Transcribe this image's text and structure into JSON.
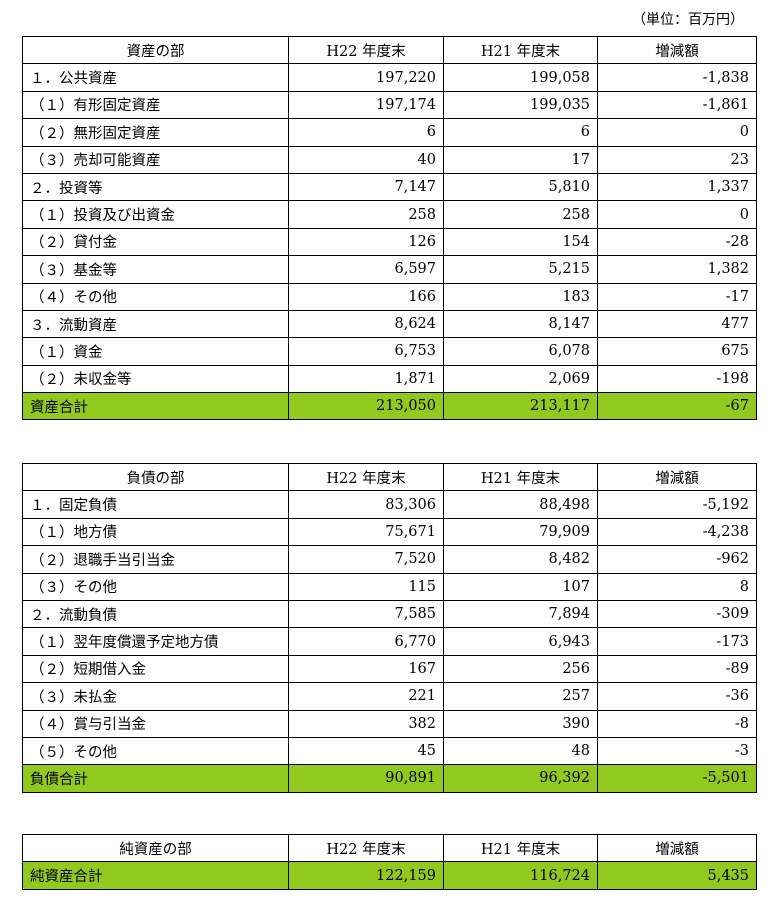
{
  "unit_note": "（単位：百万円）",
  "assets": {
    "headers": [
      "資産の部",
      "H22 年度末",
      "H21 年度末",
      "増減額"
    ],
    "rows": [
      {
        "label": "１．公共資産",
        "level": 1,
        "h22": "197,220",
        "h21": "199,058",
        "diff": "-1,838"
      },
      {
        "label": "（１）有形固定資産",
        "level": 2,
        "h22": "197,174",
        "h21": "199,035",
        "diff": "-1,861"
      },
      {
        "label": "（２）無形固定資産",
        "level": 2,
        "h22": "6",
        "h21": "6",
        "diff": "0"
      },
      {
        "label": "（３）売却可能資産",
        "level": 2,
        "h22": "40",
        "h21": "17",
        "diff": "23"
      },
      {
        "label": "２．投資等",
        "level": 1,
        "h22": "7,147",
        "h21": "5,810",
        "diff": "1,337"
      },
      {
        "label": "（１）投資及び出資金",
        "level": 2,
        "h22": "258",
        "h21": "258",
        "diff": "0"
      },
      {
        "label": "（２）貸付金",
        "level": 2,
        "h22": "126",
        "h21": "154",
        "diff": "-28"
      },
      {
        "label": "（３）基金等",
        "level": 2,
        "h22": "6,597",
        "h21": "5,215",
        "diff": "1,382"
      },
      {
        "label": "（４）その他",
        "level": 2,
        "h22": "166",
        "h21": "183",
        "diff": "-17"
      },
      {
        "label": "３．流動資産",
        "level": 1,
        "h22": "8,624",
        "h21": "8,147",
        "diff": "477"
      },
      {
        "label": "（１）資金",
        "level": 2,
        "h22": "6,753",
        "h21": "6,078",
        "diff": "675"
      },
      {
        "label": "（２）未収金等",
        "level": 2,
        "h22": "1,871",
        "h21": "2,069",
        "diff": "-198"
      }
    ],
    "total": {
      "label": "資産合計",
      "h22": "213,050",
      "h21": "213,117",
      "diff": "-67"
    }
  },
  "liabilities": {
    "headers": [
      "負債の部",
      "H22 年度末",
      "H21 年度末",
      "増減額"
    ],
    "rows": [
      {
        "label": "１．固定負債",
        "level": 1,
        "h22": "83,306",
        "h21": "88,498",
        "diff": "-5,192"
      },
      {
        "label": "（１）地方債",
        "level": 2,
        "h22": "75,671",
        "h21": "79,909",
        "diff": "-4,238"
      },
      {
        "label": "（２）退職手当引当金",
        "level": 2,
        "h22": "7,520",
        "h21": "8,482",
        "diff": "-962"
      },
      {
        "label": "（３）その他",
        "level": 2,
        "h22": "115",
        "h21": "107",
        "diff": "8"
      },
      {
        "label": "２．流動負債",
        "level": 1,
        "h22": "7,585",
        "h21": "7,894",
        "diff": "-309"
      },
      {
        "label": "（１）翌年度償還予定地方債",
        "level": 2,
        "h22": "6,770",
        "h21": "6,943",
        "diff": "-173"
      },
      {
        "label": "（２）短期借入金",
        "level": 2,
        "h22": "167",
        "h21": "256",
        "diff": "-89"
      },
      {
        "label": "（３）未払金",
        "level": 2,
        "h22": "221",
        "h21": "257",
        "diff": "-36"
      },
      {
        "label": "（４）賞与引当金",
        "level": 2,
        "h22": "382",
        "h21": "390",
        "diff": "-8"
      },
      {
        "label": "（５）その他",
        "level": 2,
        "h22": "45",
        "h21": "48",
        "diff": "-3"
      }
    ],
    "total": {
      "label": "負債合計",
      "h22": "90,891",
      "h21": "96,392",
      "diff": "-5,501"
    }
  },
  "net_assets": {
    "headers": [
      "純資産の部",
      "H22 年度末",
      "H21 年度末",
      "増減額"
    ],
    "rows": [],
    "total": {
      "label": "純資産合計",
      "h22": "122,159",
      "h21": "116,724",
      "diff": "5,435"
    }
  },
  "colors": {
    "total_row_fill": "#92c91f",
    "border": "#000000"
  }
}
